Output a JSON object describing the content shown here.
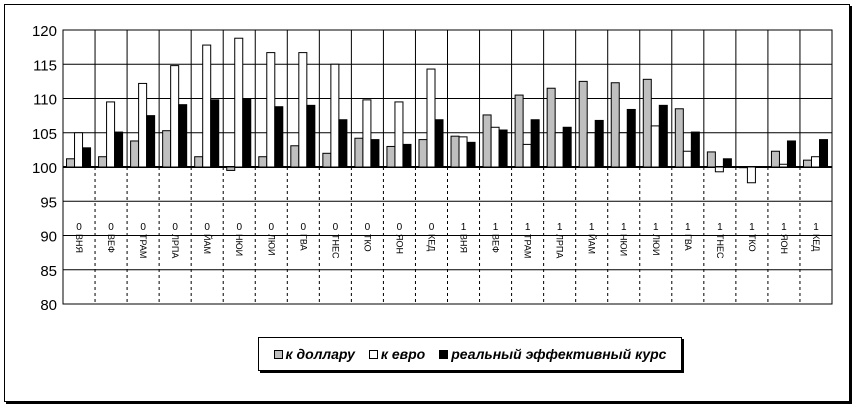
{
  "chart_data": {
    "type": "bar",
    "categories": [
      "0 ВНЯ",
      "0 ВЕФ",
      "0 ТРАМ",
      "0 ЛРПА",
      "0 ЙАМ",
      "0 НЮИ",
      "0 ЛЮИ",
      "0 ГВА",
      "0 ТНЕС",
      "0 ТКО",
      "0 ЯОН",
      "0 КЕД",
      "1 ВНЯ",
      "1 ВЕФ",
      "1 ТРАМ",
      "1 ЛРПА",
      "1 ЙАМ",
      "1 НЮИ",
      "1 ЛЮИ",
      "1 ГВА",
      "1 ТНЕС",
      "1 ТКО",
      "1 ЯОН",
      "1 КЕД"
    ],
    "series": [
      {
        "name": "к доллару",
        "color": "#bfbfbf",
        "values": [
          101.2,
          101.5,
          103.8,
          105.3,
          101.5,
          99.5,
          101.5,
          103.1,
          102.0,
          104.2,
          103.0,
          104.0,
          104.5,
          107.6,
          110.5,
          111.5,
          112.5,
          112.3,
          112.8,
          108.5,
          102.2,
          99.9,
          102.3,
          101.0
        ]
      },
      {
        "name": "к евро",
        "color": "#ffffff",
        "values": [
          105.0,
          109.5,
          112.2,
          114.8,
          117.8,
          118.8,
          116.7,
          116.7,
          115.0,
          109.8,
          109.5,
          114.3,
          104.4,
          105.8,
          103.3,
          105.0,
          105.0,
          105.0,
          106.0,
          102.3,
          99.3,
          97.7,
          100.4,
          101.5
        ]
      },
      {
        "name": "реальный эффективный курс",
        "color": "#000000",
        "values": [
          102.8,
          105.1,
          107.5,
          109.1,
          109.8,
          110.0,
          108.8,
          109.0,
          106.9,
          104.0,
          103.3,
          106.9,
          103.6,
          105.4,
          106.9,
          105.8,
          106.8,
          108.4,
          109.0,
          105.1,
          101.2,
          100.0,
          103.8,
          104.0
        ]
      }
    ],
    "y_ticks": [
      "80",
      "85",
      "90",
      "95",
      "100",
      "105",
      "110",
      "115",
      "120"
    ],
    "ylim": [
      80,
      120
    ],
    "baseline": 100,
    "grid": true,
    "legend": "bottom"
  }
}
